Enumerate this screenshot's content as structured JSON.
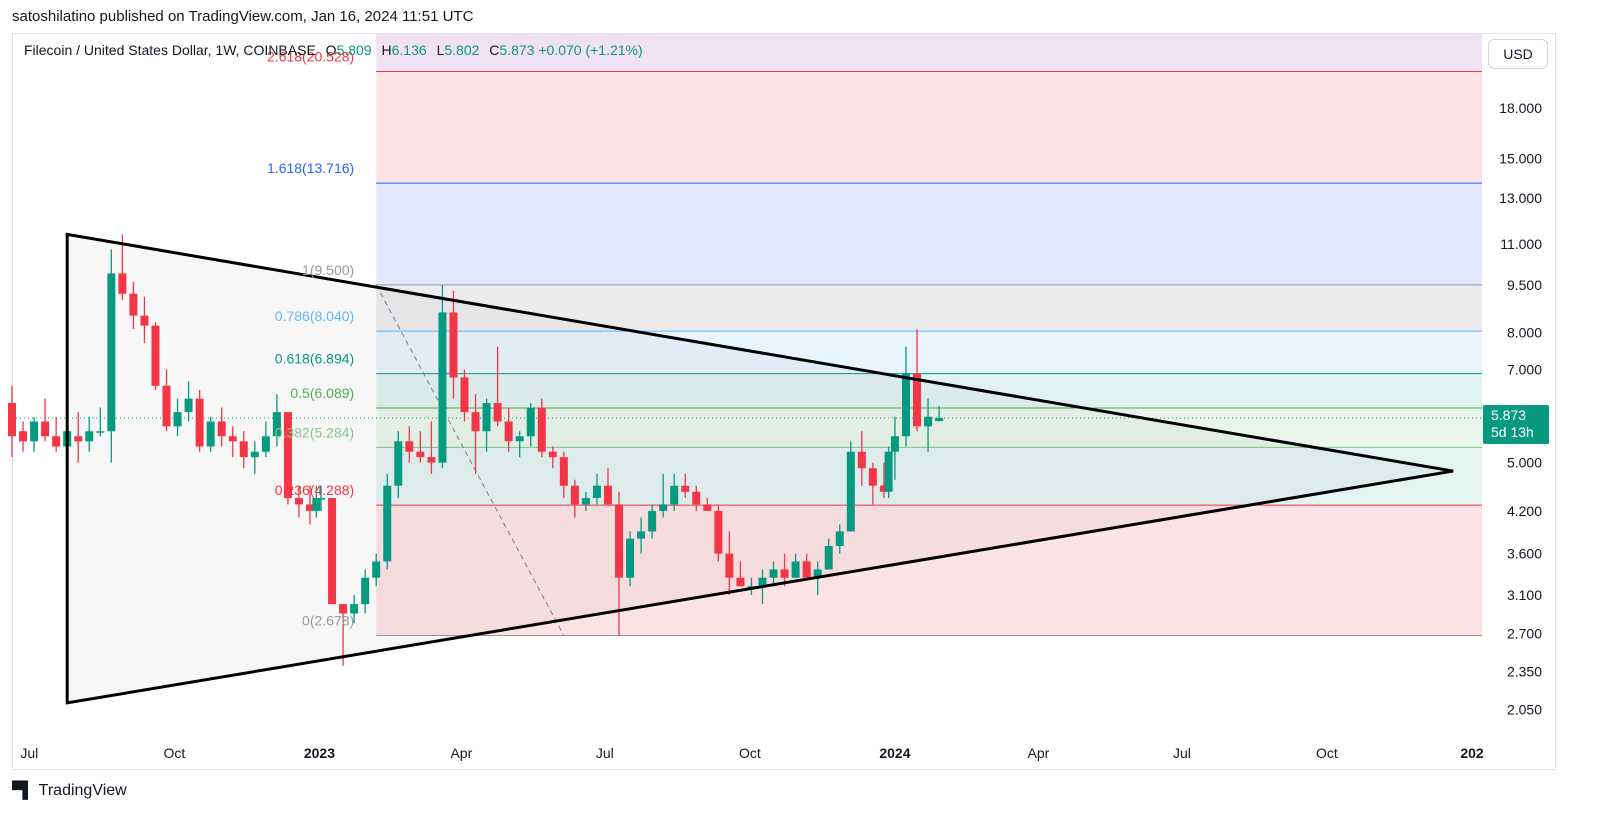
{
  "header": {
    "published_by": "satoshilatino published on TradingView.com, Jan 16, 2024 11:51 UTC"
  },
  "legend": {
    "symbol": "Filecoin / United States Dollar, 1W, COINBASE",
    "open_key": "O",
    "open": "5.809",
    "high_key": "H",
    "high": "6.136",
    "low_key": "L",
    "low": "5.802",
    "close_key": "C",
    "close": "5.873",
    "change": "+0.070 (+1.21%)"
  },
  "toolbar": {
    "currency": "USD"
  },
  "price_tag": {
    "price": "5.873",
    "countdown": "5d 13h"
  },
  "brand": {
    "logo_icon": "tradingview-logo-icon",
    "name": "TradingView"
  },
  "colors": {
    "up": "#089981",
    "down": "#f23645",
    "triangle": "#000000"
  },
  "chart_data": {
    "type": "candlestick",
    "scale": "log",
    "ylim": [
      1.85,
      23.5
    ],
    "xlim": [
      "2022-06-20",
      "2025-01-01"
    ],
    "y_ticks": [
      "18.000",
      "15.000",
      "13.000",
      "11.000",
      "9.500",
      "8.000",
      "7.000",
      "5.000",
      "4.200",
      "3.600",
      "3.100",
      "2.700",
      "2.350",
      "2.050"
    ],
    "x_ticks": [
      {
        "label": "Jul",
        "date": "2022-07-01",
        "bold": false
      },
      {
        "label": "Oct",
        "date": "2022-10-01",
        "bold": false
      },
      {
        "label": "2023",
        "date": "2023-01-01",
        "bold": true
      },
      {
        "label": "Apr",
        "date": "2023-04-01",
        "bold": false
      },
      {
        "label": "Jul",
        "date": "2023-07-01",
        "bold": false
      },
      {
        "label": "Oct",
        "date": "2023-10-01",
        "bold": false
      },
      {
        "label": "2024",
        "date": "2024-01-01",
        "bold": true
      },
      {
        "label": "Apr",
        "date": "2024-04-01",
        "bold": false
      },
      {
        "label": "Jul",
        "date": "2024-07-01",
        "bold": false
      },
      {
        "label": "Oct",
        "date": "2024-10-01",
        "bold": false
      },
      {
        "label": "202",
        "date": "2025-01-01",
        "bold": true
      }
    ],
    "fib": {
      "start": "2023-02-06",
      "end": "2025-01-01",
      "levels": [
        {
          "label": "0(2.678)",
          "price": 2.678,
          "color": "#9598a1",
          "zone_above": "rgba(242,54,69,0.14)"
        },
        {
          "label": "0.236(4.288)",
          "price": 4.288,
          "color": "#f23645",
          "zone_above": "rgba(8,153,129,0.11)"
        },
        {
          "label": "0.382(5.284)",
          "price": 5.284,
          "color": "#81c784",
          "zone_above": "rgba(76,175,80,0.12)"
        },
        {
          "label": "0.5(6.089)",
          "price": 6.089,
          "color": "#4caf50",
          "zone_above": "rgba(8,153,129,0.12)"
        },
        {
          "label": "0.618(6.894)",
          "price": 6.894,
          "color": "#089981",
          "zone_above": "rgba(100,181,246,0.15)"
        },
        {
          "label": "0.786(8.040)",
          "price": 8.04,
          "color": "#64b5f6",
          "zone_above": "rgba(149,152,161,0.18)"
        },
        {
          "label": "1(9.500)",
          "price": 9.5,
          "color": "#9598a1",
          "zone_above": "rgba(41,98,255,0.14)"
        },
        {
          "label": "1.618(13.716)",
          "price": 13.716,
          "color": "#2962ff",
          "zone_above": "rgba(242,54,69,0.14)"
        },
        {
          "label": "2.618(20.528)",
          "price": 20.528,
          "color": "#f23645",
          "zone_above": "rgba(156,39,176,0.14)"
        }
      ]
    },
    "triangle": {
      "points": [
        {
          "date": "2022-07-25",
          "price": 11.4
        },
        {
          "date": "2024-12-20",
          "price": 4.85
        },
        {
          "date": "2022-07-25",
          "price": 2.1
        }
      ]
    },
    "trend_dashed": [
      {
        "date": "2023-02-06",
        "price": 9.5
      },
      {
        "date": "2023-06-05",
        "price": 2.678
      }
    ],
    "last_price_line": 5.873,
    "candles": [
      {
        "date": "2022-06-20",
        "o": 6.2,
        "h": 6.6,
        "l": 5.1,
        "c": 5.5
      },
      {
        "date": "2022-06-27",
        "o": 5.6,
        "h": 5.8,
        "l": 5.2,
        "c": 5.4
      },
      {
        "date": "2022-07-04",
        "o": 5.4,
        "h": 5.9,
        "l": 5.2,
        "c": 5.8
      },
      {
        "date": "2022-07-11",
        "o": 5.8,
        "h": 6.3,
        "l": 5.4,
        "c": 5.5
      },
      {
        "date": "2022-07-18",
        "o": 5.5,
        "h": 5.9,
        "l": 5.2,
        "c": 5.3
      },
      {
        "date": "2022-07-25",
        "o": 5.3,
        "h": 5.8,
        "l": 5.1,
        "c": 5.6
      },
      {
        "date": "2022-08-01",
        "o": 5.5,
        "h": 6.0,
        "l": 5.0,
        "c": 5.4
      },
      {
        "date": "2022-08-08",
        "o": 5.4,
        "h": 5.9,
        "l": 5.2,
        "c": 5.6
      },
      {
        "date": "2022-08-15",
        "o": 5.6,
        "h": 6.1,
        "l": 5.5,
        "c": 5.6
      },
      {
        "date": "2022-08-22",
        "o": 5.6,
        "h": 10.8,
        "l": 5.0,
        "c": 9.9
      },
      {
        "date": "2022-08-29",
        "o": 9.9,
        "h": 11.4,
        "l": 9.0,
        "c": 9.2
      },
      {
        "date": "2022-09-05",
        "o": 9.2,
        "h": 9.6,
        "l": 8.1,
        "c": 8.5
      },
      {
        "date": "2022-09-12",
        "o": 8.5,
        "h": 9.1,
        "l": 7.7,
        "c": 8.2
      },
      {
        "date": "2022-09-19",
        "o": 8.2,
        "h": 8.3,
        "l": 6.5,
        "c": 6.6
      },
      {
        "date": "2022-09-26",
        "o": 6.6,
        "h": 7.0,
        "l": 5.6,
        "c": 5.7
      },
      {
        "date": "2022-10-03",
        "o": 5.7,
        "h": 6.3,
        "l": 5.5,
        "c": 6.0
      },
      {
        "date": "2022-10-10",
        "o": 6.0,
        "h": 6.7,
        "l": 5.8,
        "c": 6.3
      },
      {
        "date": "2022-10-17",
        "o": 6.3,
        "h": 6.5,
        "l": 5.2,
        "c": 5.3
      },
      {
        "date": "2022-10-24",
        "o": 5.3,
        "h": 5.9,
        "l": 5.2,
        "c": 5.8
      },
      {
        "date": "2022-10-31",
        "o": 5.8,
        "h": 6.1,
        "l": 5.3,
        "c": 5.5
      },
      {
        "date": "2022-11-07",
        "o": 5.5,
        "h": 5.7,
        "l": 5.1,
        "c": 5.4
      },
      {
        "date": "2022-11-14",
        "o": 5.4,
        "h": 5.6,
        "l": 4.9,
        "c": 5.1
      },
      {
        "date": "2022-11-21",
        "o": 5.1,
        "h": 5.4,
        "l": 4.8,
        "c": 5.2
      },
      {
        "date": "2022-11-28",
        "o": 5.2,
        "h": 5.8,
        "l": 5.1,
        "c": 5.5
      },
      {
        "date": "2022-12-05",
        "o": 5.5,
        "h": 6.4,
        "l": 5.3,
        "c": 6.0
      },
      {
        "date": "2022-12-12",
        "o": 6.0,
        "h": 6.0,
        "l": 4.3,
        "c": 4.4
      },
      {
        "date": "2022-12-19",
        "o": 4.4,
        "h": 4.6,
        "l": 4.1,
        "c": 4.3
      },
      {
        "date": "2022-12-26",
        "o": 4.3,
        "h": 4.6,
        "l": 4.0,
        "c": 4.2
      },
      {
        "date": "2022-12-30",
        "o": 4.2,
        "h": 4.6,
        "l": 4.1,
        "c": 4.4
      },
      {
        "date": "2023-01-02",
        "o": 4.4,
        "h": 4.6,
        "l": 4.2,
        "c": 4.4
      },
      {
        "date": "2023-01-09",
        "o": 4.4,
        "h": 4.4,
        "l": 3.0,
        "c": 3.0
      },
      {
        "date": "2023-01-16",
        "o": 3.0,
        "h": 3.0,
        "l": 2.4,
        "c": 2.9
      },
      {
        "date": "2023-01-23",
        "o": 2.9,
        "h": 3.1,
        "l": 2.8,
        "c": 3.0
      },
      {
        "date": "2023-01-30",
        "o": 3.0,
        "h": 3.4,
        "l": 2.9,
        "c": 3.3
      },
      {
        "date": "2023-02-06",
        "o": 3.3,
        "h": 3.6,
        "l": 3.2,
        "c": 3.5
      },
      {
        "date": "2023-02-13",
        "o": 3.5,
        "h": 4.8,
        "l": 3.4,
        "c": 4.6
      },
      {
        "date": "2023-02-20",
        "o": 4.6,
        "h": 5.6,
        "l": 4.4,
        "c": 5.4
      },
      {
        "date": "2023-02-27",
        "o": 5.4,
        "h": 5.7,
        "l": 5.0,
        "c": 5.2
      },
      {
        "date": "2023-03-06",
        "o": 5.2,
        "h": 5.6,
        "l": 5.0,
        "c": 5.1
      },
      {
        "date": "2023-03-13",
        "o": 5.1,
        "h": 5.8,
        "l": 4.8,
        "c": 5.0
      },
      {
        "date": "2023-03-20",
        "o": 5.0,
        "h": 9.5,
        "l": 4.9,
        "c": 8.6
      },
      {
        "date": "2023-03-27",
        "o": 8.6,
        "h": 9.3,
        "l": 6.3,
        "c": 6.8
      },
      {
        "date": "2023-04-03",
        "o": 6.8,
        "h": 7.0,
        "l": 5.8,
        "c": 6.0
      },
      {
        "date": "2023-04-10",
        "o": 6.0,
        "h": 6.4,
        "l": 4.8,
        "c": 5.6
      },
      {
        "date": "2023-04-17",
        "o": 5.6,
        "h": 6.3,
        "l": 5.2,
        "c": 6.2
      },
      {
        "date": "2023-04-24",
        "o": 6.2,
        "h": 7.6,
        "l": 5.7,
        "c": 5.8
      },
      {
        "date": "2023-05-01",
        "o": 5.8,
        "h": 6.1,
        "l": 5.2,
        "c": 5.4
      },
      {
        "date": "2023-05-08",
        "o": 5.4,
        "h": 5.6,
        "l": 5.1,
        "c": 5.5
      },
      {
        "date": "2023-05-15",
        "o": 5.5,
        "h": 6.2,
        "l": 5.3,
        "c": 6.1
      },
      {
        "date": "2023-05-22",
        "o": 6.1,
        "h": 6.3,
        "l": 5.1,
        "c": 5.2
      },
      {
        "date": "2023-05-29",
        "o": 5.2,
        "h": 5.3,
        "l": 4.9,
        "c": 5.1
      },
      {
        "date": "2023-06-05",
        "o": 5.1,
        "h": 5.2,
        "l": 4.4,
        "c": 4.6
      },
      {
        "date": "2023-06-12",
        "o": 4.6,
        "h": 4.7,
        "l": 4.1,
        "c": 4.3
      },
      {
        "date": "2023-06-19",
        "o": 4.3,
        "h": 4.5,
        "l": 4.2,
        "c": 4.4
      },
      {
        "date": "2023-06-26",
        "o": 4.4,
        "h": 4.8,
        "l": 4.3,
        "c": 4.6
      },
      {
        "date": "2023-07-03",
        "o": 4.6,
        "h": 4.9,
        "l": 4.3,
        "c": 4.3
      },
      {
        "date": "2023-07-10",
        "o": 4.3,
        "h": 4.5,
        "l": 2.678,
        "c": 3.3
      },
      {
        "date": "2023-07-17",
        "o": 3.3,
        "h": 3.9,
        "l": 3.2,
        "c": 3.8
      },
      {
        "date": "2023-07-24",
        "o": 3.8,
        "h": 4.1,
        "l": 3.6,
        "c": 3.9
      },
      {
        "date": "2023-07-31",
        "o": 3.9,
        "h": 4.3,
        "l": 3.8,
        "c": 4.2
      },
      {
        "date": "2023-08-07",
        "o": 4.2,
        "h": 4.8,
        "l": 4.1,
        "c": 4.3
      },
      {
        "date": "2023-08-14",
        "o": 4.3,
        "h": 4.8,
        "l": 4.2,
        "c": 4.6
      },
      {
        "date": "2023-08-21",
        "o": 4.6,
        "h": 4.8,
        "l": 4.4,
        "c": 4.5
      },
      {
        "date": "2023-08-28",
        "o": 4.5,
        "h": 4.6,
        "l": 4.2,
        "c": 4.3
      },
      {
        "date": "2023-09-04",
        "o": 4.3,
        "h": 4.4,
        "l": 4.2,
        "c": 4.2
      },
      {
        "date": "2023-09-11",
        "o": 4.2,
        "h": 4.3,
        "l": 3.5,
        "c": 3.6
      },
      {
        "date": "2023-09-18",
        "o": 3.6,
        "h": 3.9,
        "l": 3.1,
        "c": 3.3
      },
      {
        "date": "2023-09-25",
        "o": 3.3,
        "h": 3.5,
        "l": 3.2,
        "c": 3.2
      },
      {
        "date": "2023-10-02",
        "o": 3.2,
        "h": 3.3,
        "l": 3.1,
        "c": 3.2
      },
      {
        "date": "2023-10-09",
        "o": 3.2,
        "h": 3.4,
        "l": 3.0,
        "c": 3.3
      },
      {
        "date": "2023-10-16",
        "o": 3.3,
        "h": 3.5,
        "l": 3.2,
        "c": 3.4
      },
      {
        "date": "2023-10-23",
        "o": 3.4,
        "h": 3.6,
        "l": 3.2,
        "c": 3.3
      },
      {
        "date": "2023-10-30",
        "o": 3.3,
        "h": 3.6,
        "l": 3.3,
        "c": 3.5
      },
      {
        "date": "2023-11-06",
        "o": 3.5,
        "h": 3.6,
        "l": 3.3,
        "c": 3.3
      },
      {
        "date": "2023-11-13",
        "o": 3.3,
        "h": 3.5,
        "l": 3.1,
        "c": 3.4
      },
      {
        "date": "2023-11-20",
        "o": 3.4,
        "h": 3.8,
        "l": 3.4,
        "c": 3.7
      },
      {
        "date": "2023-11-27",
        "o": 3.7,
        "h": 4.0,
        "l": 3.6,
        "c": 3.9
      },
      {
        "date": "2023-12-04",
        "o": 3.9,
        "h": 5.4,
        "l": 3.9,
        "c": 5.2
      },
      {
        "date": "2023-12-11",
        "o": 5.2,
        "h": 5.6,
        "l": 4.6,
        "c": 4.9
      },
      {
        "date": "2023-12-18",
        "o": 4.9,
        "h": 5.0,
        "l": 4.3,
        "c": 4.6
      },
      {
        "date": "2023-12-25",
        "o": 4.6,
        "h": 5.0,
        "l": 4.4,
        "c": 4.5
      },
      {
        "date": "2023-12-28",
        "o": 4.5,
        "h": 5.3,
        "l": 4.4,
        "c": 5.2
      },
      {
        "date": "2024-01-01",
        "o": 5.2,
        "h": 5.9,
        "l": 4.7,
        "c": 5.5
      },
      {
        "date": "2024-01-08",
        "o": 5.5,
        "h": 7.6,
        "l": 5.3,
        "c": 6.9
      },
      {
        "date": "2024-01-15",
        "o": 6.9,
        "h": 8.1,
        "l": 5.6,
        "c": 5.7
      },
      {
        "date": "2024-01-22",
        "o": 5.7,
        "h": 6.3,
        "l": 5.2,
        "c": 5.9
      },
      {
        "date": "2024-01-29",
        "o": 5.809,
        "h": 6.136,
        "l": 5.802,
        "c": 5.873
      }
    ]
  }
}
